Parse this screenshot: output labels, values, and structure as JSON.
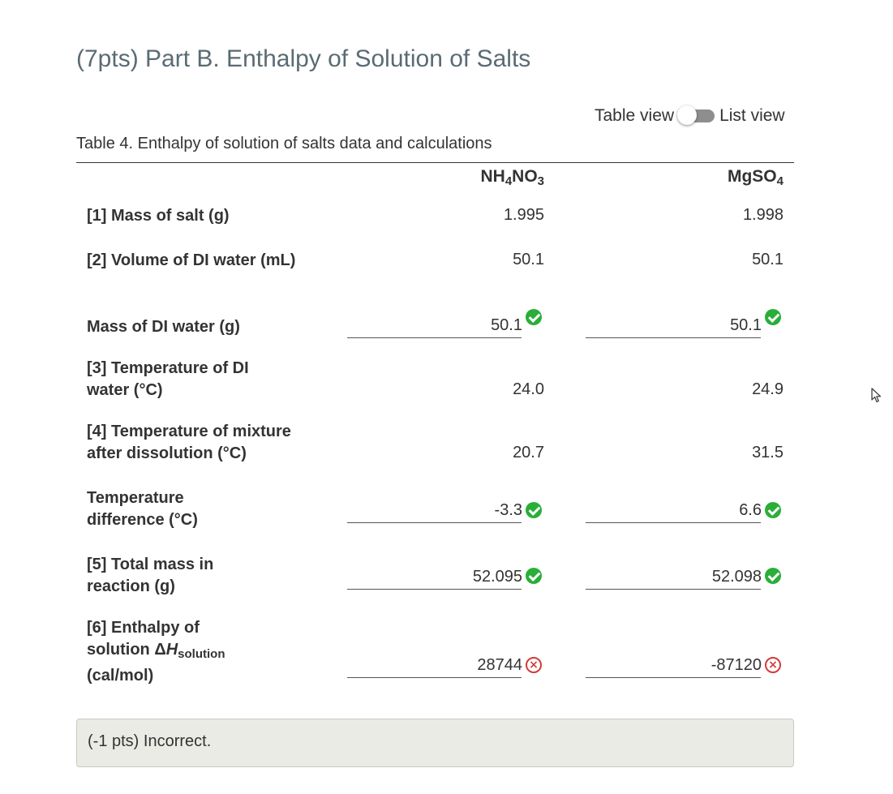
{
  "header": {
    "title": "(7pts) Part B. Enthalpy of Solution of Salts"
  },
  "view_toggle": {
    "left_label": "Table view",
    "right_label": "List view",
    "state": "table view"
  },
  "table": {
    "caption": "Table 4. Enthalpy of solution of salts data and calculations",
    "columns": [
      {
        "base1": "NH",
        "sub1": "4",
        "base2": "NO",
        "sub2": "3"
      },
      {
        "base1": "MgSO",
        "sub1": "4"
      }
    ],
    "rows": [
      {
        "label": "[1] Mass of salt (g)",
        "values": [
          "1.995",
          "1.998"
        ],
        "input": false
      },
      {
        "label": "[2] Volume of DI water (mL)",
        "values": [
          "50.1",
          "50.1"
        ],
        "input": false
      },
      {
        "label": "Mass of DI water (g)",
        "values": [
          "50.1",
          "50.1"
        ],
        "input": true,
        "status": [
          "correct",
          "correct"
        ]
      },
      {
        "label_line1": "[3] Temperature of DI",
        "label_line2": "water (°C)",
        "values": [
          "24.0",
          "24.9"
        ],
        "input": false
      },
      {
        "label_line1": "[4] Temperature of mixture",
        "label_line2": "after dissolution (°C)",
        "values": [
          "20.7",
          "31.5"
        ],
        "input": false
      },
      {
        "label_line1": "Temperature",
        "label_line2": "difference (°C)",
        "values": [
          "-3.3",
          "6.6"
        ],
        "input": true,
        "status": [
          "correct",
          "correct"
        ]
      },
      {
        "label_line1": "[5] Total mass in",
        "label_line2": "reaction (g)",
        "values": [
          "52.095",
          "52.098"
        ],
        "input": true,
        "status": [
          "correct",
          "correct"
        ]
      },
      {
        "label_line1": "[6] Enthalpy of",
        "label_line2_prefix": "solution Δ",
        "label_symbol": "H",
        "label_subscript": "solution",
        "label_line3": "(cal/mol)",
        "values": [
          "28744",
          "-87120"
        ],
        "input": true,
        "status": [
          "incorrect",
          "incorrect"
        ]
      }
    ]
  },
  "status_icons": {
    "correct": "check-circle-icon",
    "incorrect": "x-circle-icon",
    "correct_color": "#2aae38",
    "incorrect_color": "#d43a3a"
  },
  "feedback": {
    "text": "(-1 pts) Incorrect."
  },
  "colors": {
    "title": "#5a6b73",
    "text": "#333333",
    "feedback_bg": "#ebebe6"
  }
}
